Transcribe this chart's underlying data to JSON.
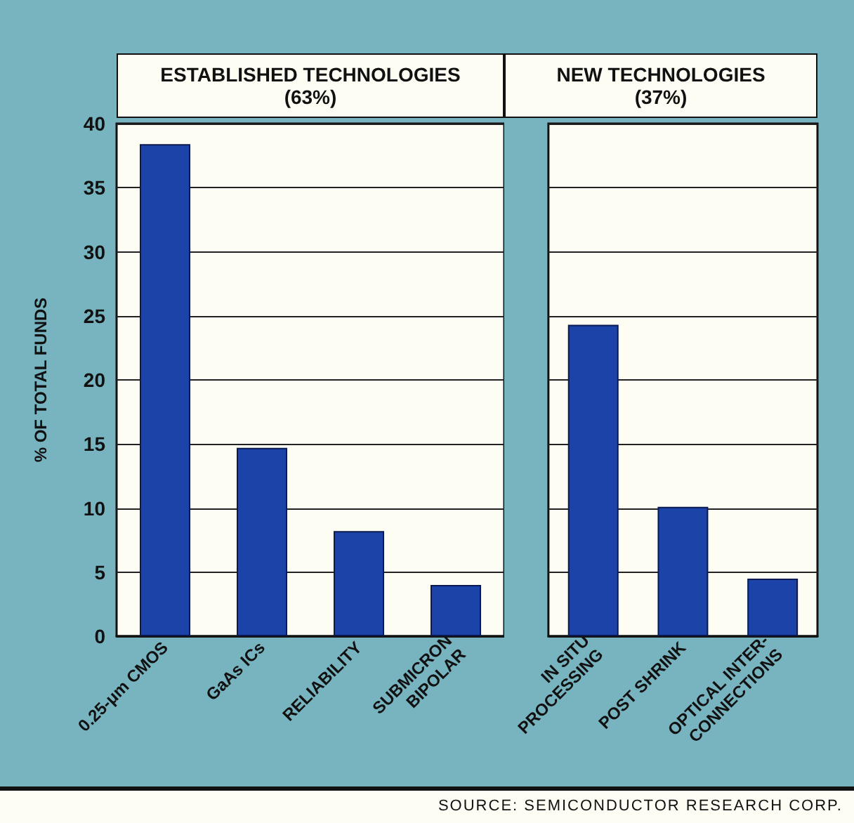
{
  "chart_data": [
    {
      "type": "bar",
      "title": "ESTABLISHED TECHNOLOGIES",
      "subtitle": "(63%)",
      "ylabel": "% OF TOTAL FUNDS",
      "categories": [
        "0.25-μm CMOS",
        "GaAs ICs",
        "RELIABILITY",
        "SUBMICRON\nBIPOLAR"
      ],
      "values": [
        38.4,
        14.7,
        8.2,
        4.0
      ],
      "color": "#1c44a8",
      "ylim": [
        0,
        40
      ],
      "yticks": [
        0,
        5,
        10,
        15,
        20,
        25,
        30,
        35,
        40
      ],
      "grid": "y"
    },
    {
      "type": "bar",
      "title": "NEW TECHNOLOGIES",
      "subtitle": "(37%)",
      "categories": [
        "IN SITU\nPROCESSING",
        "POST SHRINK",
        "OPTICAL INTER-\nCONNECTIONS"
      ],
      "values": [
        24.3,
        10.1,
        4.5
      ],
      "color": "#1c44a8",
      "ylim": [
        0,
        40
      ],
      "yticks": [
        0,
        5,
        10,
        15,
        20,
        25,
        30,
        35,
        40
      ],
      "grid": "y",
      "tick_labels": "x",
      "annotations": [
        "SOURCE: SEMICONDUCTOR RESEARCH CORP."
      ]
    }
  ]
}
